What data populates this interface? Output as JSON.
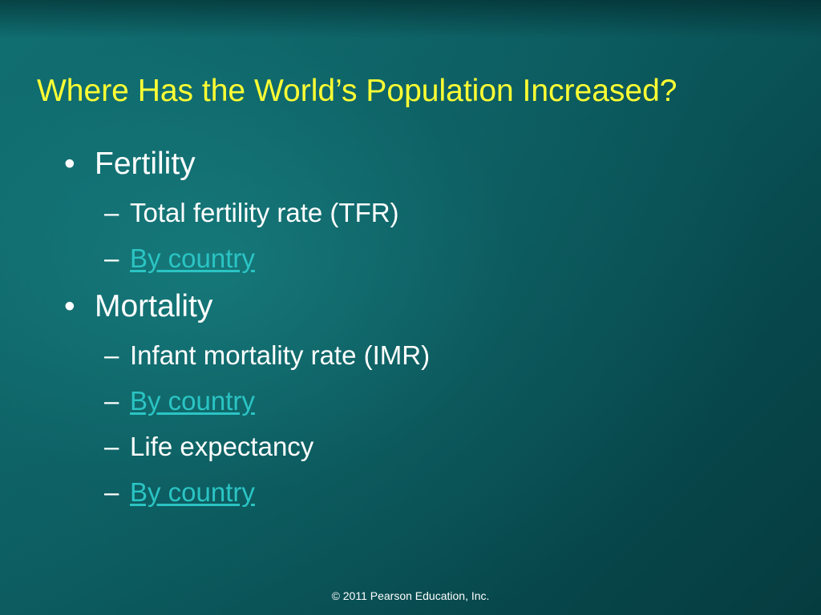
{
  "slide": {
    "title": "Where Has the World’s Population Increased?",
    "bullets": [
      {
        "label": "Fertility",
        "subitems": [
          {
            "text": "Total fertility rate (TFR)",
            "is_link": false
          },
          {
            "text": "By country",
            "is_link": true
          }
        ]
      },
      {
        "label": "Mortality",
        "subitems": [
          {
            "text": "Infant mortality rate (IMR)",
            "is_link": false
          },
          {
            "text": "By country",
            "is_link": true
          },
          {
            "text": "Life expectancy",
            "is_link": false
          },
          {
            "text": "By country",
            "is_link": true
          }
        ]
      }
    ],
    "bullet_glyph": "•",
    "dash_glyph": "–",
    "footer": "© 2011 Pearson Education, Inc."
  },
  "colors": {
    "title": "#ffff33",
    "text": "#ffffff",
    "link": "#2bc4c4",
    "background": "#0b5a5e"
  }
}
